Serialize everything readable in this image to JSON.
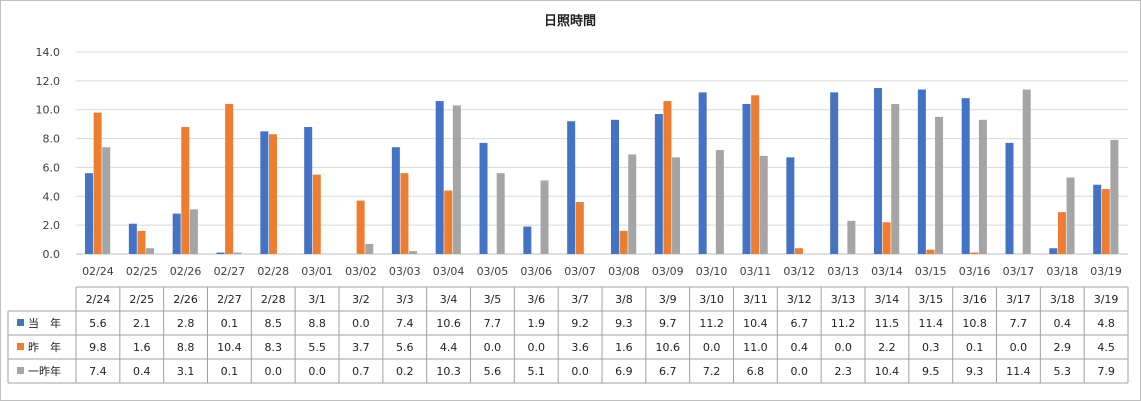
{
  "chart_data": {
    "type": "bar",
    "title": "日照時間",
    "categories": [
      "02/24",
      "02/25",
      "02/26",
      "02/27",
      "02/28",
      "03/01",
      "03/02",
      "03/03",
      "03/04",
      "03/05",
      "03/06",
      "03/07",
      "03/08",
      "03/09",
      "03/10",
      "03/11",
      "03/12",
      "03/13",
      "03/14",
      "03/15",
      "03/16",
      "03/17",
      "03/18",
      "03/19"
    ],
    "table_headers": [
      "2/24",
      "2/25",
      "2/26",
      "2/27",
      "2/28",
      "3/1",
      "3/2",
      "3/3",
      "3/4",
      "3/5",
      "3/6",
      "3/7",
      "3/8",
      "3/9",
      "3/10",
      "3/11",
      "3/12",
      "3/13",
      "3/14",
      "3/15",
      "3/16",
      "3/17",
      "3/18",
      "3/19"
    ],
    "ylim": [
      0,
      14
    ],
    "yticks": [
      "0.0",
      "2.0",
      "4.0",
      "6.0",
      "8.0",
      "10.0",
      "12.0",
      "14.0"
    ],
    "grid": true,
    "legend": "table",
    "series": [
      {
        "name": "当　年",
        "color": "#4472c4",
        "values": [
          5.6,
          2.1,
          2.8,
          0.1,
          8.5,
          8.8,
          0.0,
          7.4,
          10.6,
          7.7,
          1.9,
          9.2,
          9.3,
          9.7,
          11.2,
          10.4,
          6.7,
          11.2,
          11.5,
          11.4,
          10.8,
          7.7,
          0.4,
          4.8
        ],
        "labels": [
          "5.6",
          "2.1",
          "2.8",
          "0.1",
          "8.5",
          "8.8",
          "0.0",
          "7.4",
          "10.6",
          "7.7",
          "1.9",
          "9.2",
          "9.3",
          "9.7",
          "11.2",
          "10.4",
          "6.7",
          "11.2",
          "11.5",
          "11.4",
          "10.8",
          "7.7",
          "0.4",
          "4.8"
        ]
      },
      {
        "name": "昨　年",
        "color": "#ed7d31",
        "values": [
          9.8,
          1.6,
          8.8,
          10.4,
          8.3,
          5.5,
          3.7,
          5.6,
          4.4,
          0.0,
          0.0,
          3.6,
          1.6,
          10.6,
          0.0,
          11.0,
          0.4,
          0.0,
          2.2,
          0.3,
          0.1,
          0.0,
          2.9,
          4.5
        ],
        "labels": [
          "9.8",
          "1.6",
          "8.8",
          "10.4",
          "8.3",
          "5.5",
          "3.7",
          "5.6",
          "4.4",
          "0.0",
          "0.0",
          "3.6",
          "1.6",
          "10.6",
          "0.0",
          "11.0",
          "0.4",
          "0.0",
          "2.2",
          "0.3",
          "0.1",
          "0.0",
          "2.9",
          "4.5"
        ]
      },
      {
        "name": "一昨年",
        "color": "#a5a5a5",
        "values": [
          7.4,
          0.4,
          3.1,
          0.1,
          0.0,
          0.0,
          0.7,
          0.2,
          10.3,
          5.6,
          5.1,
          0.0,
          6.9,
          6.7,
          7.2,
          6.8,
          0.0,
          2.3,
          10.4,
          9.5,
          9.3,
          11.4,
          5.3,
          7.9
        ],
        "labels": [
          "7.4",
          "0.4",
          "3.1",
          "0.1",
          "0.0",
          "0.0",
          "0.7",
          "0.2",
          "10.3",
          "5.6",
          "5.1",
          "0.0",
          "6.9",
          "6.7",
          "7.2",
          "6.8",
          "0.0",
          "2.3",
          "10.4",
          "9.5",
          "9.3",
          "11.4",
          "5.3",
          "7.9"
        ]
      }
    ]
  }
}
